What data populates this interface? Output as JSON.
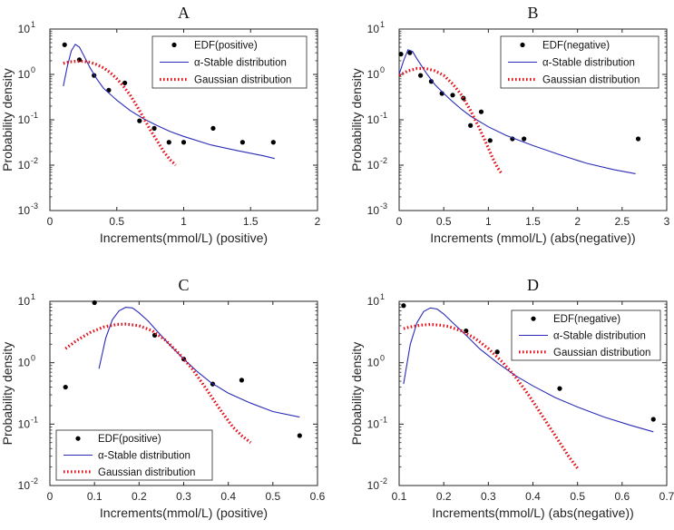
{
  "colors": {
    "edf": "#000000",
    "stable": "#2b2bb8",
    "gaussian": "#e0141e",
    "axis": "#262626"
  },
  "chart_data": [
    {
      "panel": "A",
      "type": "scatter",
      "title": "A",
      "xlabel": "Increments(mmol/L) (positive)",
      "ylabel": "Probability density",
      "xlim": [
        0,
        2
      ],
      "ylim": [
        0.001,
        10
      ],
      "yscale": "log",
      "xticks": [
        0,
        0.5,
        1,
        1.5,
        2
      ],
      "xtick_labels": [
        "0",
        "0.5",
        "1",
        "1.5",
        "2"
      ],
      "yticks": [
        0.001,
        0.01,
        0.1,
        1,
        10
      ],
      "ytick_labels": [
        {
          "base": "10",
          "exp": "-3"
        },
        {
          "base": "10",
          "exp": "-2"
        },
        {
          "base": "10",
          "exp": "-1"
        },
        {
          "base": "10",
          "exp": "0"
        },
        {
          "base": "10",
          "exp": "1"
        }
      ],
      "legend_position": "top-right",
      "series": [
        {
          "name": "EDF(positive)",
          "kind": "points",
          "x": [
            0.11,
            0.22,
            0.33,
            0.44,
            0.56,
            0.67,
            0.78,
            0.89,
            1.0,
            1.22,
            1.44,
            1.67
          ],
          "y": [
            4.5,
            2.1,
            0.95,
            0.45,
            0.65,
            0.095,
            0.065,
            0.032,
            0.032,
            0.065,
            0.032,
            0.032
          ]
        },
        {
          "name": "α-Stable distribution",
          "kind": "line",
          "x": [
            0.1,
            0.13,
            0.16,
            0.19,
            0.22,
            0.26,
            0.3,
            0.35,
            0.4,
            0.5,
            0.6,
            0.7,
            0.8,
            0.9,
            1.0,
            1.2,
            1.4,
            1.6,
            1.68
          ],
          "y": [
            0.55,
            1.5,
            3.3,
            4.6,
            4.0,
            2.4,
            1.4,
            0.8,
            0.5,
            0.27,
            0.16,
            0.105,
            0.075,
            0.055,
            0.043,
            0.028,
            0.021,
            0.016,
            0.014
          ]
        },
        {
          "name": "Gaussian distribution",
          "kind": "dotted",
          "x": [
            0.1,
            0.15,
            0.2,
            0.25,
            0.3,
            0.35,
            0.4,
            0.45,
            0.5,
            0.55,
            0.6,
            0.65,
            0.7,
            0.75,
            0.8,
            0.85,
            0.9,
            0.94
          ],
          "y": [
            1.75,
            1.9,
            1.95,
            1.95,
            1.85,
            1.65,
            1.4,
            1.1,
            0.8,
            0.55,
            0.35,
            0.2,
            0.11,
            0.06,
            0.035,
            0.02,
            0.013,
            0.01
          ]
        }
      ]
    },
    {
      "panel": "B",
      "type": "scatter",
      "title": "B",
      "xlabel": "Increments (mmol/L) (abs(negative))",
      "ylabel": "Probability density",
      "xlim": [
        0,
        3
      ],
      "ylim": [
        0.001,
        10
      ],
      "yscale": "log",
      "xticks": [
        0,
        0.5,
        1,
        1.5,
        2,
        2.5,
        3
      ],
      "xtick_labels": [
        "0",
        "0.5",
        "1",
        "1.5",
        "2",
        "2.5",
        "3"
      ],
      "yticks": [
        0.001,
        0.01,
        0.1,
        1,
        10
      ],
      "ytick_labels": [
        {
          "base": "10",
          "exp": "-3"
        },
        {
          "base": "10",
          "exp": "-2"
        },
        {
          "base": "10",
          "exp": "-1"
        },
        {
          "base": "10",
          "exp": "0"
        },
        {
          "base": "10",
          "exp": "1"
        }
      ],
      "legend_position": "top-right",
      "series": [
        {
          "name": "EDF(negative)",
          "kind": "points",
          "x": [
            0.02,
            0.12,
            0.24,
            0.36,
            0.48,
            0.6,
            0.72,
            0.8,
            0.92,
            1.02,
            1.27,
            1.4,
            2.68
          ],
          "y": [
            2.8,
            3.0,
            0.95,
            0.7,
            0.38,
            0.35,
            0.3,
            0.075,
            0.15,
            0.035,
            0.038,
            0.038,
            0.038
          ]
        },
        {
          "name": "α-Stable distribution",
          "kind": "line",
          "x": [
            0.0,
            0.05,
            0.1,
            0.15,
            0.2,
            0.3,
            0.4,
            0.5,
            0.6,
            0.7,
            0.8,
            1.0,
            1.2,
            1.5,
            1.8,
            2.1,
            2.4,
            2.65
          ],
          "y": [
            1.0,
            2.0,
            3.5,
            3.2,
            2.2,
            1.1,
            0.6,
            0.38,
            0.25,
            0.17,
            0.12,
            0.07,
            0.045,
            0.027,
            0.017,
            0.011,
            0.008,
            0.0065
          ]
        },
        {
          "name": "Gaussian distribution",
          "kind": "dotted",
          "x": [
            0.0,
            0.1,
            0.2,
            0.3,
            0.4,
            0.5,
            0.6,
            0.7,
            0.8,
            0.9,
            1.0,
            1.05,
            1.1,
            1.15
          ],
          "y": [
            0.95,
            1.2,
            1.35,
            1.35,
            1.2,
            0.95,
            0.62,
            0.35,
            0.16,
            0.065,
            0.024,
            0.014,
            0.009,
            0.0065
          ]
        }
      ]
    },
    {
      "panel": "C",
      "type": "scatter",
      "title": "C",
      "xlabel": "Increments(mmol/L) (positive)",
      "ylabel": "Probability density",
      "xlim": [
        0,
        0.6
      ],
      "ylim": [
        0.01,
        10
      ],
      "yscale": "log",
      "xticks": [
        0,
        0.1,
        0.2,
        0.3,
        0.4,
        0.5,
        0.6
      ],
      "xtick_labels": [
        "0",
        "0.1",
        "0.2",
        "0.3",
        "0.4",
        "0.5",
        "0.6"
      ],
      "yticks": [
        0.01,
        0.1,
        1,
        10
      ],
      "ytick_labels": [
        {
          "base": "10",
          "exp": "-2"
        },
        {
          "base": "10",
          "exp": "-1"
        },
        {
          "base": "10",
          "exp": "0"
        },
        {
          "base": "10",
          "exp": "1"
        }
      ],
      "legend_position": "bottom-left",
      "series": [
        {
          "name": "EDF(positive)",
          "kind": "points",
          "x": [
            0.035,
            0.1,
            0.235,
            0.3,
            0.365,
            0.43,
            0.56
          ],
          "y": [
            0.4,
            9.5,
            2.8,
            1.15,
            0.45,
            0.52,
            0.065
          ]
        },
        {
          "name": "α-Stable distribution",
          "kind": "line",
          "x": [
            0.11,
            0.125,
            0.14,
            0.155,
            0.17,
            0.185,
            0.2,
            0.22,
            0.24,
            0.27,
            0.3,
            0.33,
            0.36,
            0.4,
            0.45,
            0.5,
            0.56
          ],
          "y": [
            0.8,
            2.5,
            5.0,
            7.0,
            8.0,
            7.8,
            6.5,
            4.8,
            3.3,
            1.9,
            1.15,
            0.72,
            0.48,
            0.32,
            0.22,
            0.16,
            0.13
          ]
        },
        {
          "name": "Gaussian distribution",
          "kind": "dotted",
          "x": [
            0.035,
            0.06,
            0.09,
            0.12,
            0.15,
            0.17,
            0.2,
            0.23,
            0.26,
            0.29,
            0.32,
            0.35,
            0.38,
            0.41,
            0.43,
            0.45
          ],
          "y": [
            1.7,
            2.3,
            3.1,
            3.8,
            4.2,
            4.25,
            4.0,
            3.3,
            2.3,
            1.4,
            0.78,
            0.38,
            0.18,
            0.09,
            0.065,
            0.05
          ]
        }
      ]
    },
    {
      "panel": "D",
      "type": "scatter",
      "title": "D",
      "xlabel": "Increments(mmol/L) (abs(negative))",
      "ylabel": "Probability density",
      "xlim": [
        0.1,
        0.7
      ],
      "ylim": [
        0.01,
        10
      ],
      "yscale": "log",
      "xticks": [
        0.1,
        0.2,
        0.3,
        0.4,
        0.5,
        0.6,
        0.7
      ],
      "xtick_labels": [
        "0.1",
        "0.2",
        "0.3",
        "0.4",
        "0.5",
        "0.6",
        "0.7"
      ],
      "yticks": [
        0.01,
        0.1,
        1,
        10
      ],
      "ytick_labels": [
        {
          "base": "10",
          "exp": "-2"
        },
        {
          "base": "10",
          "exp": "-1"
        },
        {
          "base": "10",
          "exp": "0"
        },
        {
          "base": "10",
          "exp": "1"
        }
      ],
      "legend_position": "top-right",
      "series": [
        {
          "name": "EDF(negative)",
          "kind": "points",
          "x": [
            0.11,
            0.25,
            0.32,
            0.46,
            0.67
          ],
          "y": [
            8.5,
            3.3,
            1.5,
            0.38,
            0.12
          ]
        },
        {
          "name": "α-Stable distribution",
          "kind": "line",
          "x": [
            0.11,
            0.125,
            0.14,
            0.155,
            0.17,
            0.185,
            0.2,
            0.22,
            0.25,
            0.28,
            0.32,
            0.36,
            0.4,
            0.45,
            0.5,
            0.56,
            0.62,
            0.67
          ],
          "y": [
            0.45,
            2.0,
            4.5,
            6.8,
            7.8,
            7.5,
            6.2,
            4.5,
            2.8,
            1.7,
            1.0,
            0.62,
            0.42,
            0.27,
            0.19,
            0.13,
            0.095,
            0.075
          ]
        },
        {
          "name": "Gaussian distribution",
          "kind": "dotted",
          "x": [
            0.11,
            0.13,
            0.15,
            0.17,
            0.19,
            0.21,
            0.24,
            0.27,
            0.3,
            0.33,
            0.36,
            0.39,
            0.42,
            0.45,
            0.48,
            0.5
          ],
          "y": [
            3.6,
            3.9,
            4.1,
            4.2,
            4.1,
            3.9,
            3.3,
            2.5,
            1.7,
            1.05,
            0.6,
            0.3,
            0.14,
            0.065,
            0.03,
            0.019
          ]
        }
      ]
    }
  ]
}
